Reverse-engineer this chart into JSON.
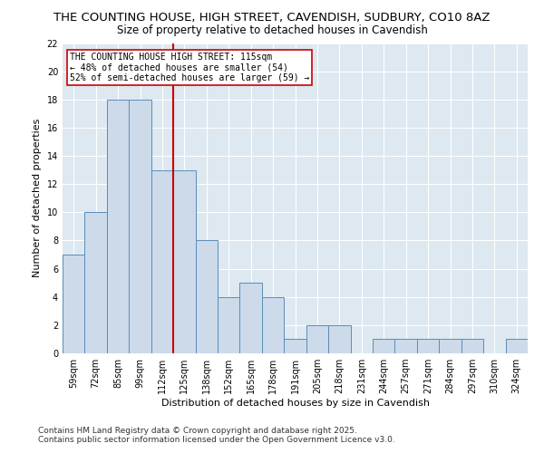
{
  "title_line1": "THE COUNTING HOUSE, HIGH STREET, CAVENDISH, SUDBURY, CO10 8AZ",
  "title_line2": "Size of property relative to detached houses in Cavendish",
  "xlabel": "Distribution of detached houses by size in Cavendish",
  "ylabel": "Number of detached properties",
  "categories": [
    "59sqm",
    "72sqm",
    "85sqm",
    "99sqm",
    "112sqm",
    "125sqm",
    "138sqm",
    "152sqm",
    "165sqm",
    "178sqm",
    "191sqm",
    "205sqm",
    "218sqm",
    "231sqm",
    "244sqm",
    "257sqm",
    "271sqm",
    "284sqm",
    "297sqm",
    "310sqm",
    "324sqm"
  ],
  "values": [
    7,
    10,
    18,
    18,
    13,
    13,
    8,
    4,
    5,
    4,
    1,
    2,
    2,
    0,
    1,
    1,
    1,
    1,
    1,
    0,
    1
  ],
  "bar_color": "#ccdaea",
  "bar_edge_color": "#5b8db8",
  "bar_edge_width": 0.7,
  "vline_x": 4.5,
  "vline_color": "#cc0000",
  "annotation_line1": "THE COUNTING HOUSE HIGH STREET: 115sqm",
  "annotation_line2": "← 48% of detached houses are smaller (54)",
  "annotation_line3": "52% of semi-detached houses are larger (59) →",
  "annotation_box_color": "#ffffff",
  "annotation_box_edge": "#cc0000",
  "ylim": [
    0,
    22
  ],
  "yticks": [
    0,
    2,
    4,
    6,
    8,
    10,
    12,
    14,
    16,
    18,
    20,
    22
  ],
  "figure_bg_color": "#ffffff",
  "plot_bg_color": "#dde8f0",
  "grid_color": "#ffffff",
  "footer_line1": "Contains HM Land Registry data © Crown copyright and database right 2025.",
  "footer_line2": "Contains public sector information licensed under the Open Government Licence v3.0.",
  "title1_fontsize": 9.5,
  "title2_fontsize": 8.5,
  "axis_label_fontsize": 8,
  "tick_fontsize": 7,
  "annotation_fontsize": 7,
  "footer_fontsize": 6.5
}
